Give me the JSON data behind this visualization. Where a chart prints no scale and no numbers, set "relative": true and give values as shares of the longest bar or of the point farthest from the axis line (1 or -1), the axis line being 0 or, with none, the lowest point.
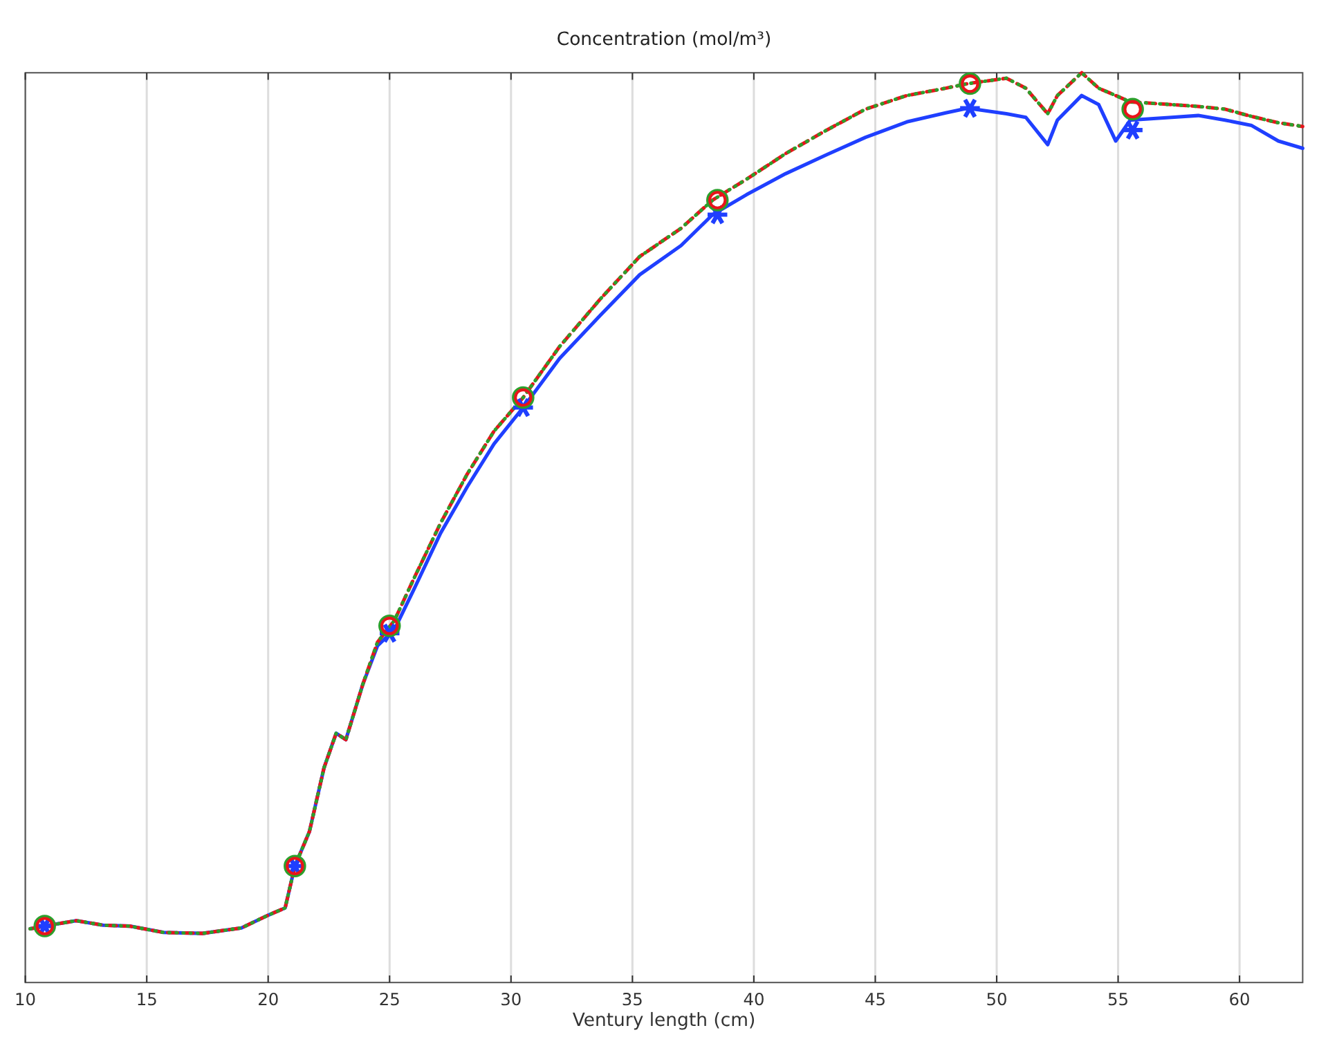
{
  "chart_data": {
    "type": "line",
    "title": "Concentration (mol/m³)",
    "xlabel": "Ventury length (cm)",
    "relative": true,
    "xlim": [
      10,
      62.6
    ],
    "xticks": [
      10,
      15,
      20,
      25,
      30,
      35,
      40,
      45,
      50,
      55,
      60
    ],
    "grid": "x",
    "series": [
      {
        "color": "#1f3fff",
        "line_style": "solid",
        "marker": "none",
        "x": [
          10.2,
          11.0,
          12.1,
          13.2,
          14.3,
          15.7,
          17.3,
          18.9,
          20.0,
          20.7,
          21.1,
          21.7,
          22.3,
          22.8,
          23.2,
          23.9,
          24.5,
          25.2,
          26.0,
          27.1,
          28.2,
          29.3,
          30.5,
          32.0,
          33.7,
          35.3,
          37.0,
          38.3,
          39.7,
          41.3,
          43.0,
          44.6,
          46.3,
          47.9,
          48.8,
          50.4,
          51.2,
          52.1,
          52.5,
          53.5,
          54.2,
          54.9,
          55.5,
          57.2,
          58.3,
          59.4,
          60.5,
          61.6,
          62.6
        ],
        "values": [
          0.059,
          0.063,
          0.068,
          0.063,
          0.062,
          0.055,
          0.054,
          0.06,
          0.074,
          0.082,
          0.128,
          0.166,
          0.236,
          0.274,
          0.267,
          0.328,
          0.37,
          0.388,
          0.432,
          0.494,
          0.545,
          0.592,
          0.632,
          0.686,
          0.734,
          0.778,
          0.81,
          0.844,
          0.866,
          0.889,
          0.91,
          0.929,
          0.946,
          0.956,
          0.961,
          0.955,
          0.951,
          0.921,
          0.948,
          0.975,
          0.965,
          0.925,
          0.948,
          0.951,
          0.953,
          0.948,
          0.942,
          0.925,
          0.917
        ]
      },
      {
        "color": "#e8141b",
        "line_style": "dashed",
        "marker": "none",
        "x": [
          10.2,
          11.0,
          12.1,
          13.2,
          14.3,
          15.7,
          17.3,
          18.9,
          20.0,
          20.7,
          21.1,
          21.7,
          22.3,
          22.8,
          23.2,
          23.9,
          24.5,
          25.2,
          26.0,
          27.1,
          28.2,
          29.3,
          30.5,
          32.0,
          33.7,
          35.3,
          37.0,
          38.3,
          39.7,
          41.3,
          43.0,
          44.6,
          46.3,
          47.9,
          48.8,
          50.4,
          51.2,
          52.1,
          52.5,
          53.5,
          54.2,
          54.9,
          55.5,
          57.2,
          58.3,
          59.4,
          60.5,
          61.6,
          62.6
        ],
        "values": [
          0.059,
          0.063,
          0.068,
          0.063,
          0.062,
          0.055,
          0.054,
          0.06,
          0.074,
          0.082,
          0.128,
          0.166,
          0.236,
          0.274,
          0.267,
          0.328,
          0.374,
          0.398,
          0.444,
          0.505,
          0.559,
          0.606,
          0.643,
          0.699,
          0.752,
          0.798,
          0.829,
          0.86,
          0.883,
          0.911,
          0.937,
          0.96,
          0.975,
          0.983,
          0.988,
          0.994,
          0.983,
          0.955,
          0.975,
          1,
          0.983,
          0.975,
          0.968,
          0.965,
          0.963,
          0.96,
          0.952,
          0.945,
          0.941
        ]
      },
      {
        "color": "#2ca02c",
        "line_style": "dotted",
        "marker": "none",
        "x": [
          10.2,
          11.0,
          12.1,
          13.2,
          14.3,
          15.7,
          17.3,
          18.9,
          20.0,
          20.7,
          21.1,
          21.7,
          22.3,
          22.8,
          23.2,
          23.9,
          24.5,
          25.2,
          26.0,
          27.1,
          28.2,
          29.3,
          30.5,
          32.0,
          33.7,
          35.3,
          37.0,
          38.3,
          39.7,
          41.3,
          43.0,
          44.6,
          46.3,
          47.9,
          48.8,
          50.4,
          51.2,
          52.1,
          52.5,
          53.5,
          54.2,
          54.9,
          55.5,
          57.2,
          58.3,
          59.4,
          60.5,
          61.6,
          62.6
        ],
        "values": [
          0.059,
          0.063,
          0.068,
          0.063,
          0.062,
          0.055,
          0.054,
          0.06,
          0.074,
          0.082,
          0.128,
          0.166,
          0.236,
          0.274,
          0.267,
          0.328,
          0.374,
          0.398,
          0.444,
          0.505,
          0.559,
          0.606,
          0.643,
          0.699,
          0.752,
          0.798,
          0.829,
          0.86,
          0.883,
          0.911,
          0.937,
          0.96,
          0.975,
          0.983,
          0.988,
          0.994,
          0.983,
          0.955,
          0.975,
          1,
          0.983,
          0.975,
          0.968,
          0.965,
          0.963,
          0.96,
          0.952,
          0.945,
          0.941
        ]
      },
      {
        "type": "scatter",
        "color": "#1f3fff",
        "marker": "cross",
        "x": [
          10.8,
          21.1,
          25.0,
          30.5,
          38.5,
          48.9,
          55.6
        ],
        "values": [
          0.062,
          0.128,
          0.384,
          0.632,
          0.844,
          0.961,
          0.937
        ]
      },
      {
        "type": "scatter",
        "color": "#2ca02c",
        "marker": "circle",
        "x": [
          10.8,
          21.1,
          25.0,
          30.5,
          38.5,
          48.9,
          55.6
        ],
        "values": [
          0.062,
          0.128,
          0.392,
          0.643,
          0.86,
          0.988,
          0.96
        ]
      },
      {
        "type": "scatter",
        "color": "#e8141b",
        "marker": "circle",
        "x": [
          10.8,
          21.1,
          25.0,
          30.5,
          38.5,
          48.9,
          55.6
        ],
        "values": [
          0.062,
          0.128,
          0.392,
          0.643,
          0.86,
          0.988,
          0.96
        ]
      }
    ]
  }
}
